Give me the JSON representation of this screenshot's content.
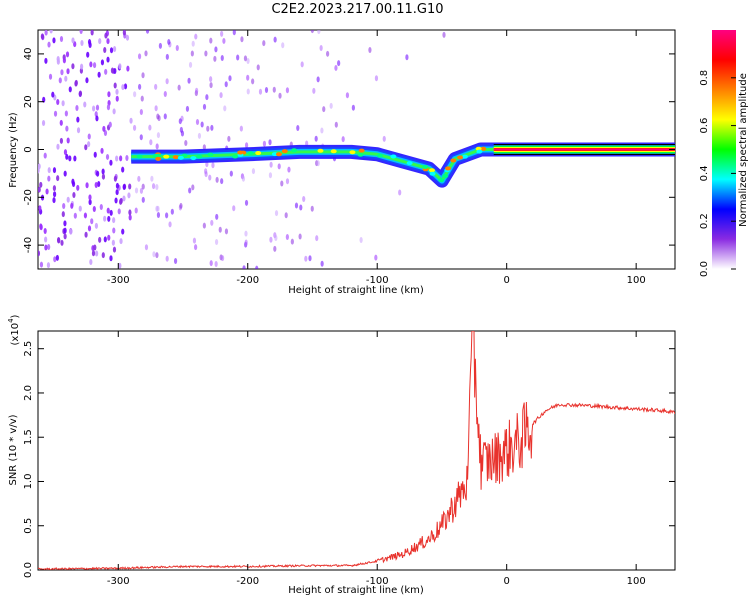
{
  "page": {
    "title": "C2E2.2023.217.00.11.G10"
  },
  "colors": {
    "snr_line": "#e8322c",
    "axis": "#000000",
    "scatter": "#8a2be2"
  },
  "chart_data": [
    {
      "type": "heatmap",
      "xlabel": "Height of straight line (km)",
      "ylabel": "Frequency (Hz)",
      "xlim": [
        -362,
        130
      ],
      "ylim": [
        -50,
        50
      ],
      "x_ticks": [
        -300,
        -200,
        -100,
        0,
        100
      ],
      "y_ticks": [
        -40,
        -20,
        0,
        20,
        40
      ],
      "colorbar": {
        "label": "Normalized spectral amplitude",
        "range": [
          0.0,
          1.0
        ],
        "ticks": [
          "0.0",
          "0.2",
          "0.4",
          "0.6",
          "0.8"
        ],
        "colormap": [
          "#ffffff",
          "#8a2be2",
          "#0000ff",
          "#00ffff",
          "#00ff00",
          "#ffff00",
          "#ff8000",
          "#ff0000",
          "#ff0080"
        ]
      },
      "ridge": [
        {
          "x": -290,
          "y": -3
        },
        {
          "x": -250,
          "y": -3
        },
        {
          "x": -200,
          "y": -2
        },
        {
          "x": -160,
          "y": -1
        },
        {
          "x": -120,
          "y": -1
        },
        {
          "x": -100,
          "y": -2
        },
        {
          "x": -80,
          "y": -5
        },
        {
          "x": -60,
          "y": -8
        },
        {
          "x": -50,
          "y": -13
        },
        {
          "x": -40,
          "y": -4
        },
        {
          "x": -20,
          "y": 0
        },
        {
          "x": 0,
          "y": 0
        },
        {
          "x": 130,
          "y": 0
        }
      ]
    },
    {
      "type": "line",
      "xlabel": "Height of straight line (km)",
      "ylabel": "SNR (10 * v/v)",
      "y_multiplier": "(x10",
      "y_multiplier_exp": "4",
      "xlim": [
        -362,
        130
      ],
      "ylim": [
        0,
        2.7
      ],
      "x_ticks": [
        -300,
        -200,
        -100,
        0,
        100
      ],
      "y_ticks": [
        "0.0",
        "0.5",
        "1.0",
        "1.5",
        "2.0",
        "2.5"
      ],
      "series": [
        {
          "x": [
            -362,
            -300,
            -250,
            -200,
            -150,
            -120,
            -100,
            -80,
            -60,
            -50,
            -40,
            -30,
            -26,
            -20,
            -10,
            0,
            10,
            20,
            30,
            40,
            60,
            80,
            100,
            120,
            130
          ],
          "y": [
            0.01,
            0.02,
            0.04,
            0.04,
            0.05,
            0.05,
            0.1,
            0.18,
            0.35,
            0.5,
            0.75,
            1.0,
            2.7,
            1.2,
            1.25,
            1.35,
            1.45,
            1.65,
            1.8,
            1.87,
            1.86,
            1.84,
            1.82,
            1.8,
            1.78
          ]
        }
      ]
    }
  ]
}
